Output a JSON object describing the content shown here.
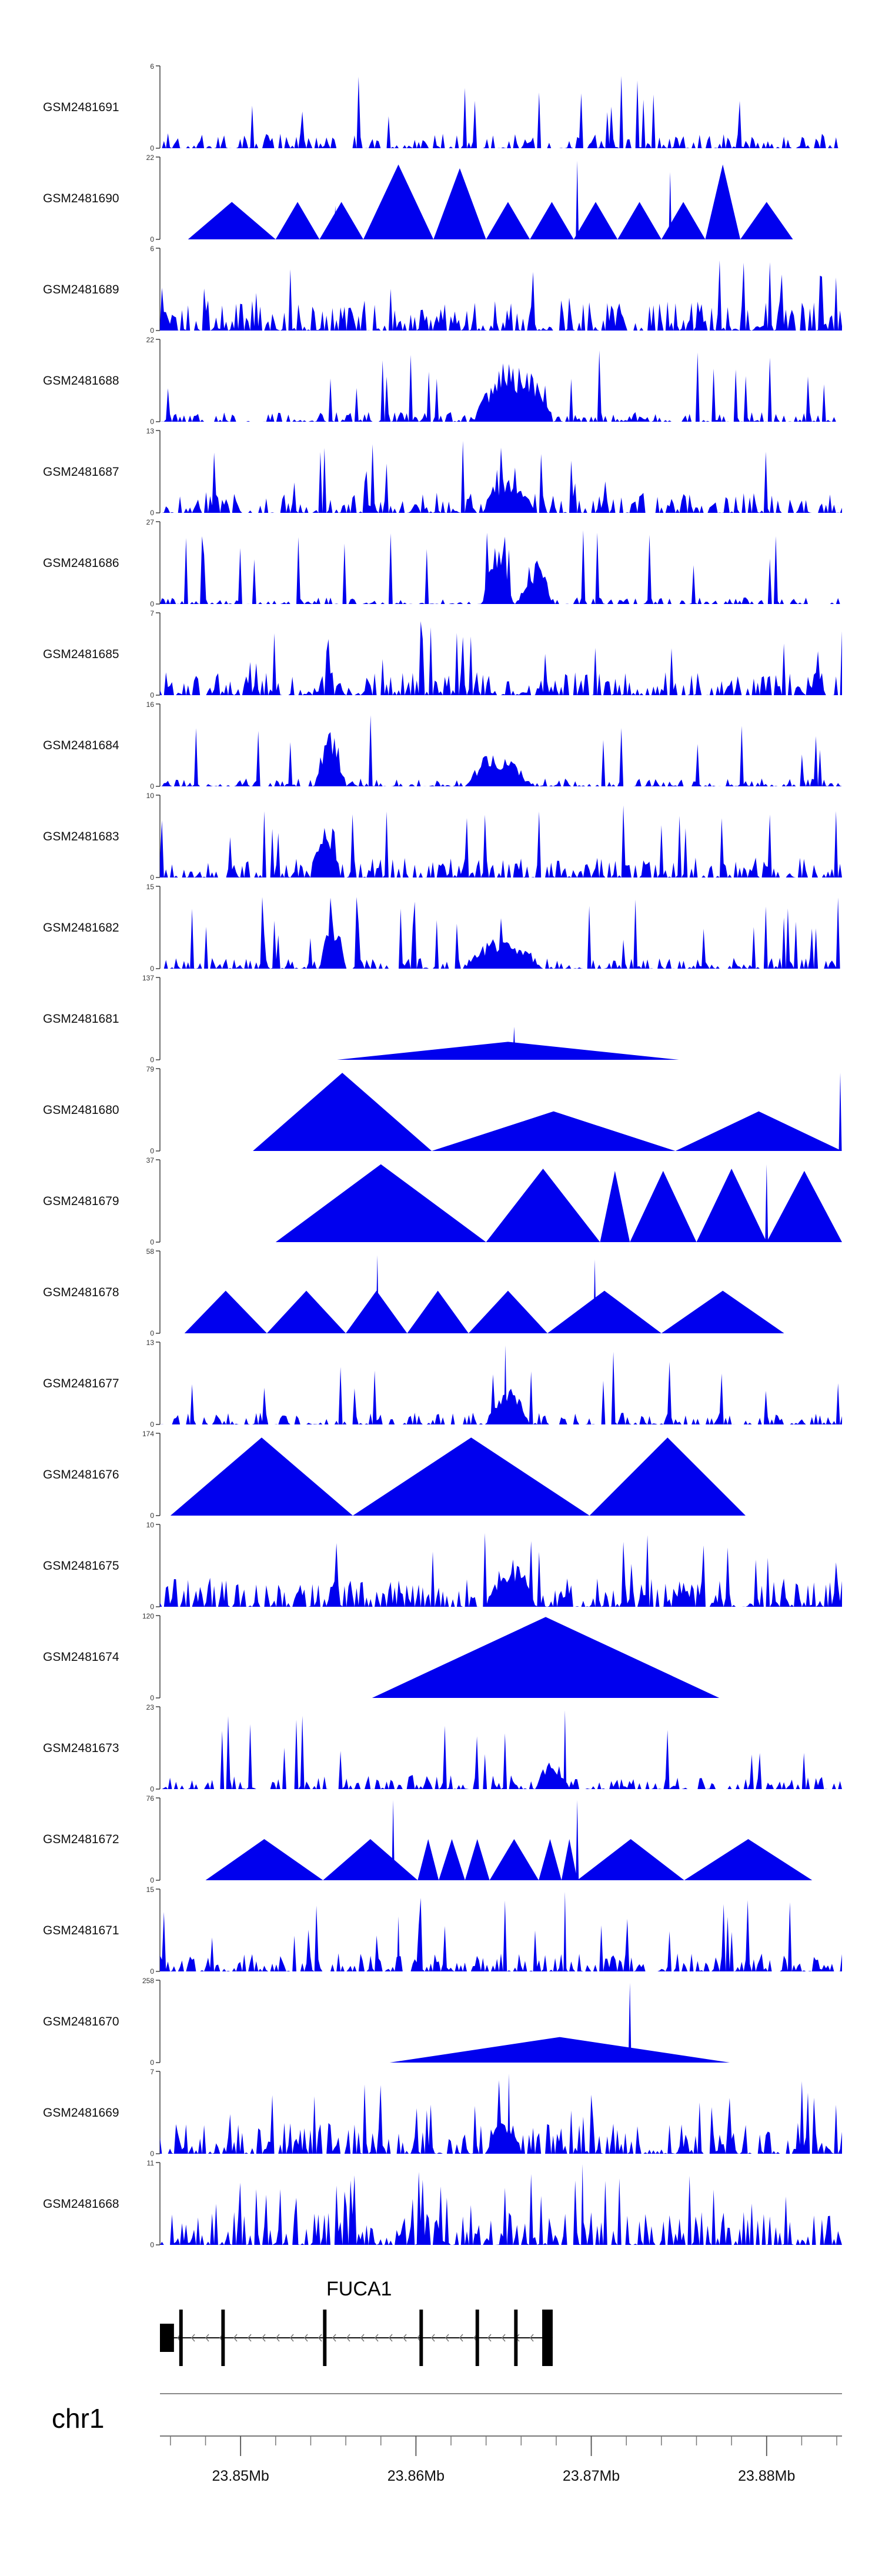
{
  "chart_data": {
    "type": "area",
    "title": "",
    "chromosome": "chr1",
    "xlim": [
      23.8454,
      23.8843
    ],
    "x_unit": "Mb",
    "x_ticks": [
      23.85,
      23.86,
      23.87,
      23.88
    ],
    "x_tick_labels": [
      "23.85Mb",
      "23.86Mb",
      "23.87Mb",
      "23.88Mb"
    ],
    "fill_color": "#0000ee",
    "gene": {
      "name": "FUCA1",
      "strand": "-",
      "start": 23.8454,
      "end": 23.8678,
      "exons": [
        [
          23.8454,
          23.8462
        ],
        [
          23.8465,
          23.8467
        ],
        [
          23.8489,
          23.8491
        ],
        [
          23.8547,
          23.8549
        ],
        [
          23.8602,
          23.8604
        ],
        [
          23.8634,
          23.8636
        ],
        [
          23.8656,
          23.8658
        ],
        [
          23.8672,
          23.8678
        ]
      ]
    },
    "tracks": [
      {
        "name": "GSM2481691",
        "ymax": 6,
        "kind": "noise",
        "seed": 11,
        "density": 0.55,
        "base": 0.5,
        "bursts": []
      },
      {
        "name": "GSM2481690",
        "ymax": 22,
        "kind": "tri",
        "tris": [
          [
            23.847,
            23.852,
            10
          ],
          [
            23.852,
            23.8545,
            10
          ],
          [
            23.8545,
            23.857,
            10
          ],
          [
            23.857,
            23.861,
            20
          ],
          [
            23.861,
            23.864,
            19
          ],
          [
            23.864,
            23.8665,
            10
          ],
          [
            23.8665,
            23.869,
            10
          ],
          [
            23.869,
            23.8715,
            10
          ],
          [
            23.8715,
            23.874,
            10
          ],
          [
            23.874,
            23.8765,
            10
          ],
          [
            23.8765,
            23.8785,
            20
          ],
          [
            23.8785,
            23.8815,
            10
          ]
        ],
        "spikes": [
          [
            23.8692,
            21
          ],
          [
            23.8745,
            18
          ],
          [
            23.8554,
            9
          ]
        ]
      },
      {
        "name": "GSM2481689",
        "ymax": 6,
        "kind": "noise",
        "seed": 23,
        "density": 0.75,
        "base": 1.0,
        "bursts": []
      },
      {
        "name": "GSM2481688",
        "ymax": 22,
        "kind": "noise",
        "seed": 37,
        "density": 0.5,
        "base": 1.2,
        "bursts": [
          [
            23.8633,
            23.8678,
            17
          ]
        ]
      },
      {
        "name": "GSM2481687",
        "ymax": 13,
        "kind": "noise",
        "seed": 41,
        "density": 0.6,
        "base": 1.5,
        "bursts": [
          [
            23.8638,
            23.8668,
            7
          ]
        ]
      },
      {
        "name": "GSM2481686",
        "ymax": 27,
        "kind": "noise",
        "seed": 53,
        "density": 0.45,
        "base": 1.0,
        "bursts": [
          [
            23.8638,
            23.8655,
            20
          ],
          [
            23.8658,
            23.8678,
            14
          ]
        ]
      },
      {
        "name": "GSM2481685",
        "ymax": 7,
        "kind": "noise",
        "seed": 61,
        "density": 0.65,
        "base": 0.9,
        "bursts": []
      },
      {
        "name": "GSM2481684",
        "ymax": 16,
        "kind": "noise",
        "seed": 71,
        "density": 0.55,
        "base": 0.7,
        "bursts": [
          [
            23.8542,
            23.856,
            11
          ],
          [
            23.8628,
            23.8665,
            7
          ]
        ]
      },
      {
        "name": "GSM2481683",
        "ymax": 10,
        "kind": "noise",
        "seed": 83,
        "density": 0.55,
        "base": 1.1,
        "bursts": [
          [
            23.854,
            23.8557,
            8
          ]
        ]
      },
      {
        "name": "GSM2481682",
        "ymax": 15,
        "kind": "noise",
        "seed": 97,
        "density": 0.55,
        "base": 0.9,
        "bursts": [
          [
            23.8545,
            23.856,
            10
          ],
          [
            23.8628,
            23.8672,
            6
          ]
        ]
      },
      {
        "name": "GSM2481681",
        "ymax": 137,
        "kind": "tri",
        "tris": [
          [
            23.8555,
            23.875,
            30
          ]
        ],
        "spikes": [
          [
            23.8656,
            55
          ]
        ]
      },
      {
        "name": "GSM2481680",
        "ymax": 79,
        "kind": "tri",
        "tris": [
          [
            23.8507,
            23.8609,
            75
          ],
          [
            23.8609,
            23.8748,
            38
          ],
          [
            23.8748,
            23.8843,
            38
          ]
        ],
        "spikes": [
          [
            23.8842,
            75
          ]
        ]
      },
      {
        "name": "GSM2481679",
        "ymax": 37,
        "kind": "tri",
        "tris": [
          [
            23.852,
            23.864,
            35
          ],
          [
            23.864,
            23.8705,
            33
          ],
          [
            23.8705,
            23.8722,
            32
          ],
          [
            23.8722,
            23.876,
            32
          ],
          [
            23.876,
            23.88,
            33
          ],
          [
            23.88,
            23.8843,
            32
          ]
        ],
        "spikes": [
          [
            23.88,
            35
          ]
        ]
      },
      {
        "name": "GSM2481678",
        "ymax": 58,
        "kind": "tri",
        "tris": [
          [
            23.8468,
            23.8515,
            30
          ],
          [
            23.8515,
            23.856,
            30
          ],
          [
            23.856,
            23.8595,
            30
          ],
          [
            23.8595,
            23.863,
            30
          ],
          [
            23.863,
            23.8675,
            30
          ],
          [
            23.8675,
            23.874,
            30
          ],
          [
            23.874,
            23.881,
            30
          ]
        ],
        "spikes": [
          [
            23.8578,
            55
          ],
          [
            23.8702,
            52
          ]
        ]
      },
      {
        "name": "GSM2481677",
        "ymax": 13,
        "kind": "noise",
        "seed": 101,
        "density": 0.5,
        "base": 0.9,
        "bursts": [
          [
            23.864,
            23.8665,
            6
          ]
        ],
        "spikes": [
          [
            23.8651,
            12.5
          ]
        ]
      },
      {
        "name": "GSM2481676",
        "ymax": 174,
        "kind": "tri",
        "tris": [
          [
            23.846,
            23.8564,
            165
          ],
          [
            23.8564,
            23.8699,
            165
          ],
          [
            23.8699,
            23.8788,
            165
          ]
        ],
        "spikes": []
      },
      {
        "name": "GSM2481675",
        "ymax": 10,
        "kind": "noise",
        "seed": 113,
        "density": 0.7,
        "base": 1.6,
        "bursts": [
          [
            23.864,
            23.8668,
            6
          ]
        ]
      },
      {
        "name": "GSM2481674",
        "ymax": 120,
        "kind": "tri",
        "tris": [
          [
            23.8575,
            23.8773,
            118
          ]
        ],
        "spikes": []
      },
      {
        "name": "GSM2481673",
        "ymax": 23,
        "kind": "noise",
        "seed": 127,
        "density": 0.5,
        "base": 1.8,
        "bursts": [
          [
            23.8668,
            23.8688,
            8
          ]
        ],
        "spikes": [
          [
            23.8685,
            22
          ]
        ]
      },
      {
        "name": "GSM2481672",
        "ymax": 76,
        "kind": "tri",
        "tris": [
          [
            23.848,
            23.8547,
            38
          ],
          [
            23.8547,
            23.8601,
            38
          ],
          [
            23.8601,
            23.8613,
            38
          ],
          [
            23.8613,
            23.8628,
            38
          ],
          [
            23.8628,
            23.8642,
            38
          ],
          [
            23.8642,
            23.867,
            38
          ],
          [
            23.867,
            23.8683,
            38
          ],
          [
            23.8683,
            23.8692,
            38
          ],
          [
            23.8692,
            23.8753,
            38
          ],
          [
            23.8753,
            23.8826,
            38
          ]
        ],
        "spikes": [
          [
            23.8587,
            74
          ],
          [
            23.8692,
            74
          ]
        ]
      },
      {
        "name": "GSM2481671",
        "ymax": 15,
        "kind": "noise",
        "seed": 131,
        "density": 0.6,
        "base": 1.5,
        "bursts": [],
        "spikes": [
          [
            23.8685,
            14.5
          ],
          [
            23.859,
            10
          ]
        ]
      },
      {
        "name": "GSM2481670",
        "ymax": 258,
        "kind": "tri",
        "tris": [
          [
            23.8585,
            23.8779,
            80
          ]
        ],
        "spikes": [
          [
            23.8722,
            250
          ]
        ]
      },
      {
        "name": "GSM2481669",
        "ymax": 7,
        "kind": "noise",
        "seed": 139,
        "density": 0.6,
        "base": 1.2,
        "bursts": [
          [
            23.864,
            23.866,
            3
          ]
        ],
        "spikes": [
          [
            23.8653,
            6.8
          ]
        ]
      },
      {
        "name": "GSM2481668",
        "ymax": 11,
        "kind": "noise",
        "seed": 149,
        "density": 0.6,
        "base": 2.0,
        "bursts": [],
        "spikes": [
          [
            23.8695,
            10.8
          ]
        ]
      }
    ]
  }
}
